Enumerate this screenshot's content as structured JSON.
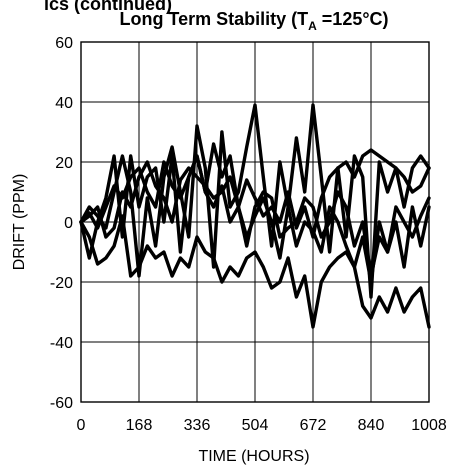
{
  "header": {
    "partial_title": "ics (continued)"
  },
  "chart_data": {
    "type": "line",
    "title_main": "Long Term Stability (T",
    "title_sub": "A",
    "title_tail": " =125°C)",
    "xlabel": "TIME (HOURS)",
    "ylabel": "DRIFT (PPM)",
    "xlim": [
      0,
      1008
    ],
    "ylim": [
      -60,
      60
    ],
    "xticks": [
      0,
      168,
      336,
      504,
      672,
      840,
      1008
    ],
    "yticks": [
      -60,
      -40,
      -20,
      0,
      20,
      40,
      60
    ],
    "grid": true,
    "line_color": "#000000",
    "series": [
      {
        "x": [
          0,
          24,
          48,
          72,
          96,
          120,
          144,
          168,
          192,
          216,
          240,
          264,
          288,
          312,
          336,
          360,
          384,
          408,
          432,
          456,
          480,
          504,
          528,
          552,
          576,
          600,
          624,
          648,
          672,
          696,
          720,
          744,
          768,
          792,
          816,
          840,
          864,
          888,
          912,
          936,
          960,
          984,
          1008
        ],
        "y": [
          0,
          5,
          2,
          -2,
          10,
          22,
          10,
          -18,
          8,
          -8,
          15,
          25,
          10,
          -5,
          32,
          18,
          -15,
          30,
          5,
          10,
          25,
          39,
          15,
          -8,
          20,
          5,
          28,
          10,
          39,
          15,
          -10,
          18,
          -5,
          22,
          15,
          -25,
          20,
          10,
          18,
          5,
          18,
          22,
          18
        ]
      },
      {
        "x": [
          0,
          24,
          48,
          72,
          96,
          120,
          144,
          168,
          192,
          216,
          240,
          264,
          288,
          312,
          336,
          360,
          384,
          408,
          432,
          456,
          480,
          504,
          528,
          552,
          576,
          600,
          624,
          648,
          672,
          696,
          720,
          744,
          768,
          792,
          816,
          840,
          864,
          888,
          912,
          936,
          960,
          984,
          1008
        ],
        "y": [
          0,
          -12,
          0,
          8,
          22,
          -5,
          22,
          5,
          15,
          18,
          0,
          22,
          -10,
          15,
          22,
          10,
          26,
          15,
          22,
          5,
          14,
          8,
          2,
          5,
          0,
          10,
          -2,
          5,
          -5,
          8,
          15,
          18,
          20,
          15,
          22,
          24,
          22,
          20,
          18,
          15,
          10,
          12,
          18
        ]
      },
      {
        "x": [
          0,
          24,
          48,
          72,
          96,
          120,
          144,
          168,
          192,
          216,
          240,
          264,
          288,
          312,
          336,
          360,
          384,
          408,
          432,
          456,
          480,
          504,
          528,
          552,
          576,
          600,
          624,
          648,
          672,
          696,
          720,
          744,
          768,
          792,
          816,
          840,
          864,
          888,
          912,
          936,
          960,
          984,
          1008
        ],
        "y": [
          0,
          -5,
          -14,
          -12,
          -8,
          2,
          -18,
          -15,
          -8,
          -12,
          -10,
          -18,
          -12,
          -15,
          -5,
          -10,
          -12,
          -20,
          -15,
          -18,
          -12,
          -10,
          -15,
          -22,
          -20,
          -12,
          -25,
          -18,
          -35,
          -20,
          -15,
          -12,
          -10,
          -15,
          -28,
          -32,
          -25,
          -30,
          -22,
          -30,
          -25,
          -22,
          -35
        ]
      },
      {
        "x": [
          0,
          24,
          48,
          72,
          96,
          120,
          144,
          168,
          192,
          216,
          240,
          264,
          288,
          312,
          336,
          360,
          384,
          408,
          432,
          456,
          480,
          504,
          528,
          552,
          576,
          600,
          624,
          648,
          672,
          696,
          720,
          744,
          768,
          792,
          816,
          840,
          864,
          888,
          912,
          936,
          960,
          984,
          1008
        ],
        "y": [
          0,
          3,
          -2,
          5,
          12,
          8,
          15,
          18,
          10,
          5,
          20,
          12,
          8,
          15,
          22,
          10,
          5,
          12,
          0,
          5,
          -5,
          2,
          8,
          0,
          -12,
          5,
          -8,
          0,
          -3,
          -10,
          5,
          0,
          -8,
          -15,
          -5,
          -20,
          0,
          -10,
          5,
          0,
          -5,
          2,
          8
        ]
      },
      {
        "x": [
          0,
          24,
          48,
          72,
          96,
          120,
          144,
          168,
          192,
          216,
          240,
          264,
          288,
          312,
          336,
          360,
          384,
          408,
          432,
          456,
          480,
          504,
          528,
          552,
          576,
          600,
          624,
          648,
          672,
          696,
          720,
          744,
          768,
          792,
          816,
          840,
          864,
          888,
          912,
          936,
          960,
          984,
          1008
        ],
        "y": [
          0,
          2,
          5,
          -5,
          -2,
          10,
          5,
          15,
          20,
          12,
          8,
          0,
          14,
          18,
          15,
          12,
          8,
          10,
          15,
          5,
          -8,
          5,
          10,
          8,
          -5,
          -2,
          0,
          8,
          5,
          -5,
          0,
          10,
          5,
          -8,
          0,
          -18,
          -5,
          -10,
          0,
          -15,
          5,
          -8,
          5
        ]
      }
    ]
  }
}
